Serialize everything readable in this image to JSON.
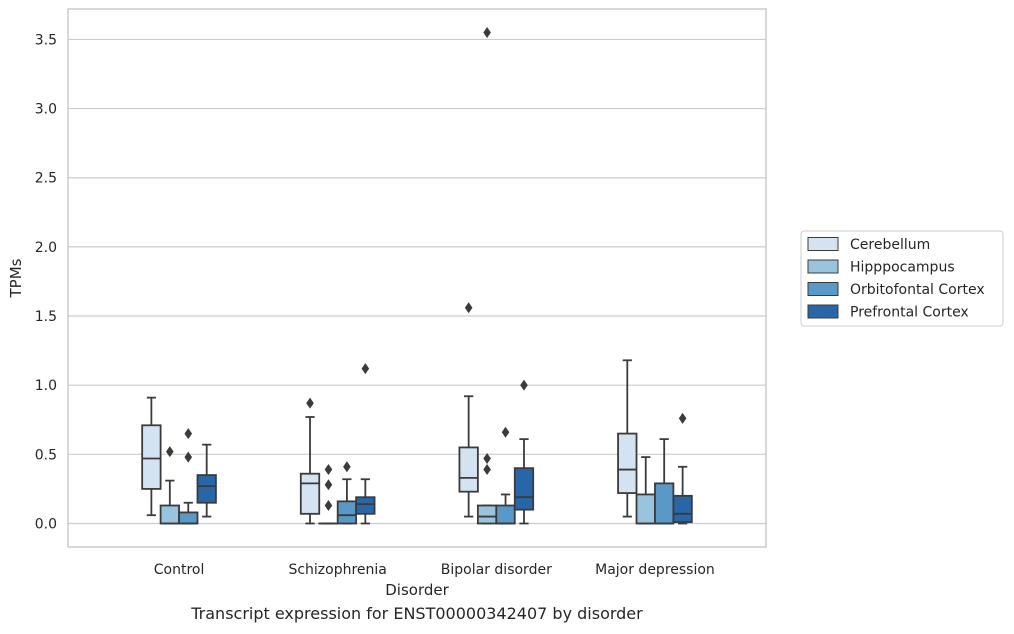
{
  "caption": "Transcript expression for ENST00000342407 by disorder",
  "chart_data": {
    "type": "box",
    "xlabel": "Disorder",
    "ylabel": "TPMs",
    "ylim": [
      -0.17,
      3.72
    ],
    "yticks": [
      0.0,
      0.5,
      1.0,
      1.5,
      2.0,
      2.5,
      3.0,
      3.5
    ],
    "ytick_labels": [
      "0.0",
      "0.5",
      "1.0",
      "1.5",
      "2.0",
      "2.5",
      "3.0",
      "3.5"
    ],
    "grid": "horizontal",
    "legend_position": "right",
    "categories": [
      "Control",
      "Schizophrenia",
      "Bipolar disorder",
      "Major depression"
    ],
    "series": [
      {
        "name": "Cerebellum",
        "color": "#d4e3f2",
        "boxes": [
          {
            "whislo": 0.06,
            "q1": 0.25,
            "med": 0.47,
            "q3": 0.71,
            "whishi": 0.91,
            "fliers": []
          },
          {
            "whislo": 0.0,
            "q1": 0.07,
            "med": 0.29,
            "q3": 0.36,
            "whishi": 0.77,
            "fliers": [
              0.87
            ]
          },
          {
            "whislo": 0.05,
            "q1": 0.23,
            "med": 0.33,
            "q3": 0.55,
            "whishi": 0.92,
            "fliers": [
              1.56
            ]
          },
          {
            "whislo": 0.05,
            "q1": 0.22,
            "med": 0.39,
            "q3": 0.65,
            "whishi": 1.18,
            "fliers": []
          }
        ]
      },
      {
        "name": "Hipppocampus",
        "color": "#9ac4de",
        "boxes": [
          {
            "whislo": 0.0,
            "q1": 0.0,
            "med": 0.0,
            "q3": 0.13,
            "whishi": 0.31,
            "fliers": [
              0.52
            ]
          },
          {
            "whislo": 0.0,
            "q1": 0.0,
            "med": 0.0,
            "q3": 0.0,
            "whishi": 0.0,
            "fliers": [
              0.13,
              0.28,
              0.39
            ]
          },
          {
            "whislo": 0.0,
            "q1": 0.0,
            "med": 0.05,
            "q3": 0.13,
            "whishi": 0.13,
            "fliers": [
              0.39,
              0.47,
              3.55
            ]
          },
          {
            "whislo": 0.0,
            "q1": 0.0,
            "med": 0.0,
            "q3": 0.21,
            "whishi": 0.48,
            "fliers": []
          }
        ]
      },
      {
        "name": "Orbitofontal Cortex",
        "color": "#5998c7",
        "boxes": [
          {
            "whislo": 0.0,
            "q1": 0.0,
            "med": 0.0,
            "q3": 0.08,
            "whishi": 0.15,
            "fliers": [
              0.48,
              0.65
            ]
          },
          {
            "whislo": 0.0,
            "q1": 0.0,
            "med": 0.06,
            "q3": 0.16,
            "whishi": 0.32,
            "fliers": [
              0.41
            ]
          },
          {
            "whislo": 0.0,
            "q1": 0.0,
            "med": 0.0,
            "q3": 0.13,
            "whishi": 0.21,
            "fliers": [
              0.66
            ]
          },
          {
            "whislo": 0.0,
            "q1": 0.0,
            "med": 0.0,
            "q3": 0.29,
            "whishi": 0.61,
            "fliers": []
          }
        ]
      },
      {
        "name": "Prefrontal Cortex",
        "color": "#2866a8",
        "boxes": [
          {
            "whislo": 0.05,
            "q1": 0.15,
            "med": 0.27,
            "q3": 0.35,
            "whishi": 0.57,
            "fliers": []
          },
          {
            "whislo": 0.0,
            "q1": 0.07,
            "med": 0.14,
            "q3": 0.19,
            "whishi": 0.32,
            "fliers": [
              1.12
            ]
          },
          {
            "whislo": 0.0,
            "q1": 0.1,
            "med": 0.19,
            "q3": 0.4,
            "whishi": 0.61,
            "fliers": [
              1.0
            ]
          },
          {
            "whislo": 0.0,
            "q1": 0.01,
            "med": 0.07,
            "q3": 0.2,
            "whishi": 0.41,
            "fliers": [
              0.76
            ]
          }
        ]
      }
    ]
  }
}
